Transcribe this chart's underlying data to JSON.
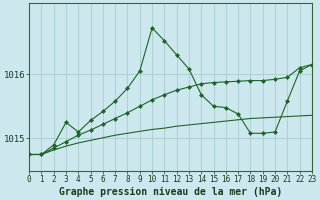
{
  "title": "Graphe pression niveau de la mer (hPa)",
  "background_color": "#cce8ee",
  "grid_color": "#aacccc",
  "line_color": "#1a6622",
  "hours": [
    0,
    1,
    2,
    3,
    4,
    5,
    6,
    7,
    8,
    9,
    10,
    11,
    12,
    13,
    14,
    15,
    16,
    17,
    18,
    19,
    20,
    21,
    22,
    23
  ],
  "series_flat": [
    1014.75,
    1014.75,
    1014.82,
    1014.88,
    1014.93,
    1014.97,
    1015.01,
    1015.05,
    1015.08,
    1015.11,
    1015.14,
    1015.16,
    1015.19,
    1015.21,
    1015.23,
    1015.25,
    1015.27,
    1015.29,
    1015.31,
    1015.32,
    1015.33,
    1015.34,
    1015.35,
    1015.36
  ],
  "series_trend": [
    1014.75,
    1014.75,
    1014.85,
    1014.95,
    1015.05,
    1015.13,
    1015.22,
    1015.31,
    1015.4,
    1015.5,
    1015.6,
    1015.68,
    1015.75,
    1015.8,
    1015.85,
    1015.87,
    1015.88,
    1015.89,
    1015.9,
    1015.9,
    1015.92,
    1015.95,
    1016.1,
    1016.15
  ],
  "series_volatile": [
    1014.75,
    1014.75,
    1014.9,
    1015.25,
    1015.1,
    1015.28,
    1015.42,
    1015.58,
    1015.78,
    1016.05,
    1016.72,
    1016.52,
    1016.3,
    1016.08,
    1015.68,
    1015.5,
    1015.48,
    1015.38,
    1015.08,
    1015.08,
    1015.1,
    1015.58,
    1016.05,
    1016.15
  ],
  "ylim": [
    1014.5,
    1017.1
  ],
  "ytick_positions": [
    1015.0,
    1016.0
  ],
  "ytick_labels": [
    "1015",
    "1016"
  ],
  "xlim": [
    0,
    23
  ],
  "title_fontsize": 7,
  "tick_fontsize": 5.5,
  "y_tick_fontsize": 6.5
}
